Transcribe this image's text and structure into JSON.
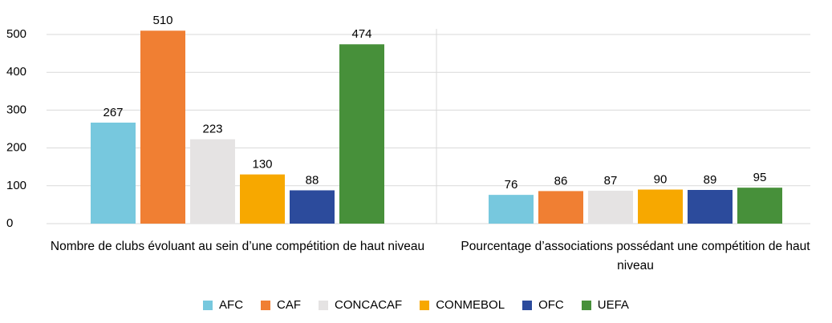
{
  "chart_data": {
    "type": "bar",
    "categories": [
      "Nombre de clubs évoluant au sein d’une compétition de haut niveau",
      "Pourcentage d’associations possédant une compétition de haut niveau"
    ],
    "series": [
      {
        "name": "AFC",
        "color": "#77c8de",
        "values": [
          267,
          76
        ]
      },
      {
        "name": "CAF",
        "color": "#f07f33",
        "values": [
          510,
          86
        ]
      },
      {
        "name": "CONCACAF",
        "color": "#e5e3e3",
        "values": [
          223,
          87
        ]
      },
      {
        "name": "CONMEBOL",
        "color": "#f7a800",
        "values": [
          130,
          90
        ]
      },
      {
        "name": "OFC",
        "color": "#2c4b9c",
        "values": [
          88,
          89
        ]
      },
      {
        "name": "UEFA",
        "color": "#47903a",
        "values": [
          474,
          95
        ]
      }
    ],
    "ylim": [
      0,
      500
    ],
    "yticks": [
      0,
      100,
      200,
      300,
      400,
      500
    ],
    "grid": true,
    "legend": "bottom"
  }
}
